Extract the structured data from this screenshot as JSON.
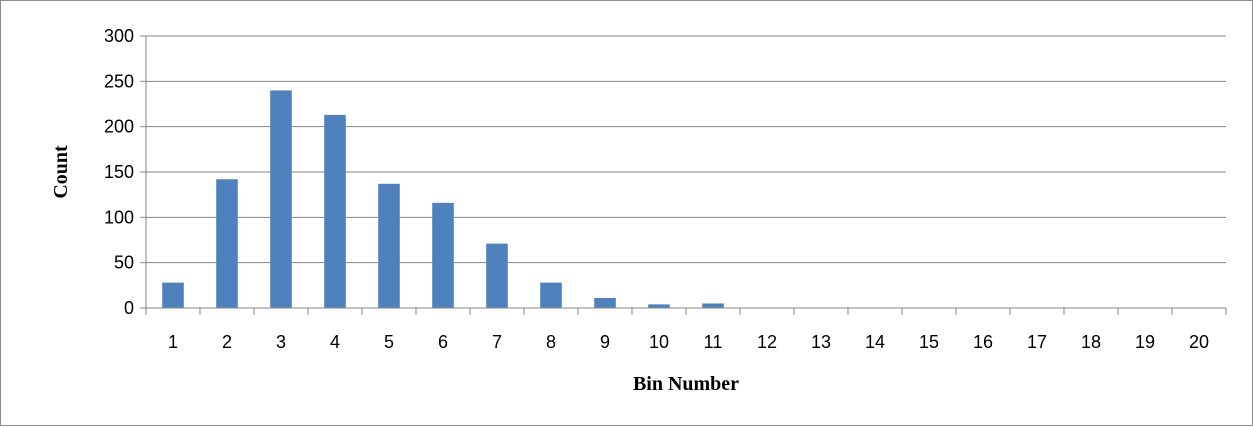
{
  "chart_data": {
    "type": "bar",
    "title": "",
    "xlabel": "Bin Number",
    "ylabel": "Count",
    "categories": [
      "1",
      "2",
      "3",
      "4",
      "5",
      "6",
      "7",
      "8",
      "9",
      "10",
      "11",
      "12",
      "13",
      "14",
      "15",
      "16",
      "17",
      "18",
      "19",
      "20"
    ],
    "values": [
      28,
      142,
      240,
      213,
      137,
      116,
      71,
      28,
      11,
      4,
      5,
      0,
      0,
      0,
      0,
      0,
      0,
      0,
      0,
      0
    ],
    "ylim": [
      0,
      300
    ],
    "yticks": [
      0,
      50,
      100,
      150,
      200,
      250,
      300
    ],
    "grid": "horizontal",
    "legend": "none",
    "colors": {
      "bar": "#4f81bd",
      "grid": "#868686",
      "axis": "#868686"
    }
  }
}
